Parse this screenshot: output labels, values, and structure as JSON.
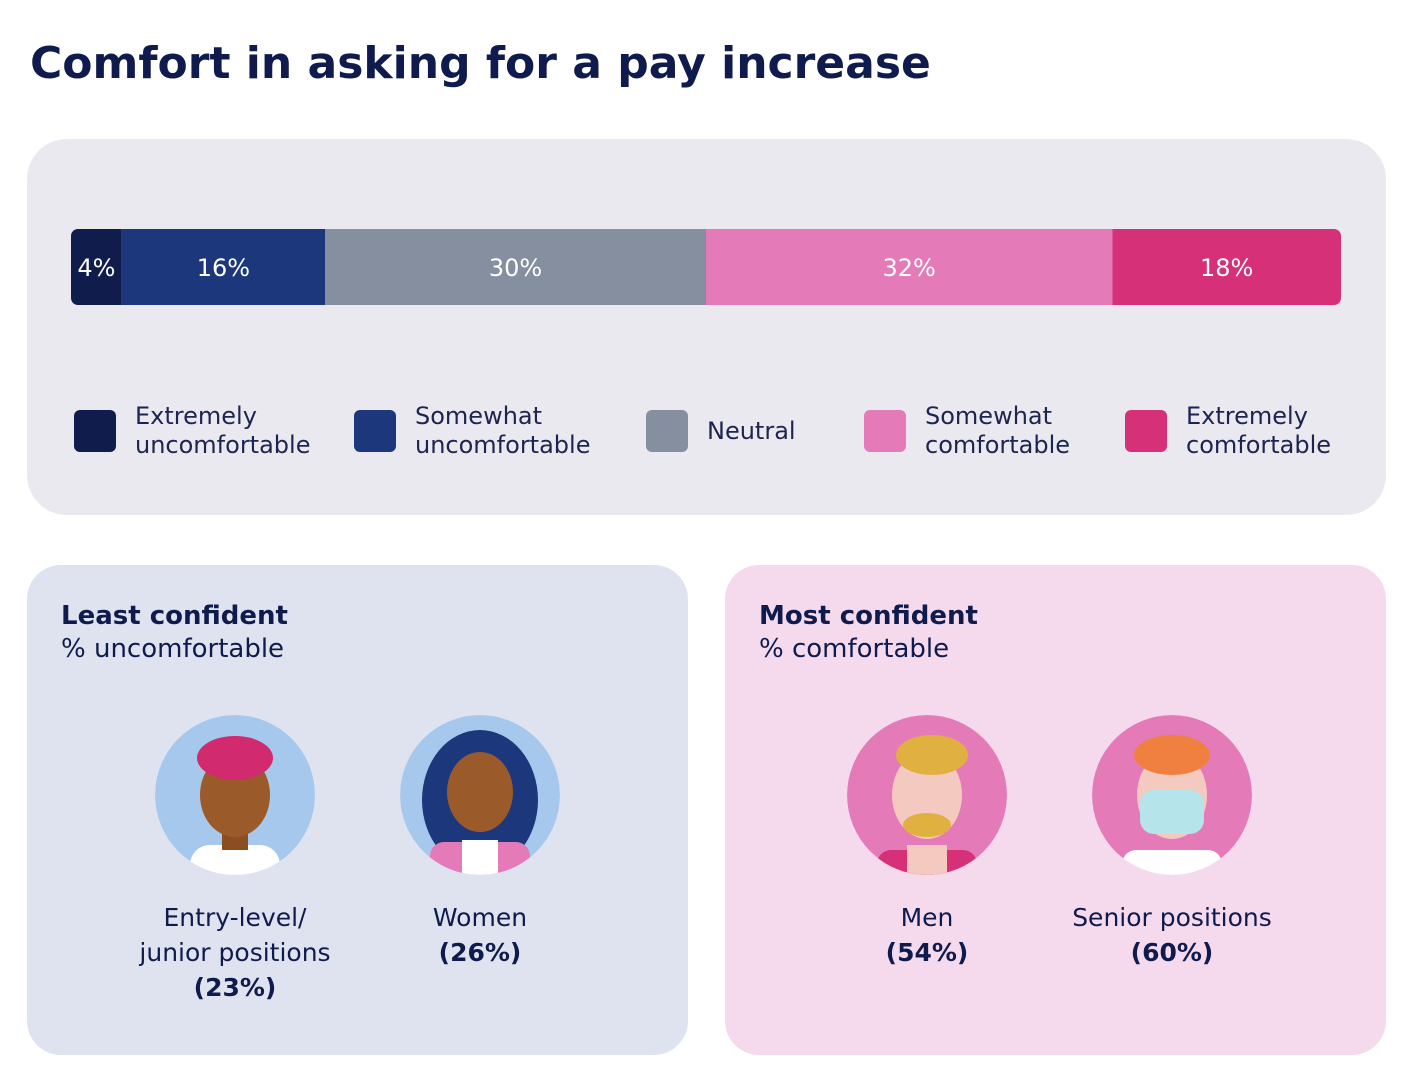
{
  "chart_data": {
    "type": "stacked-bar",
    "title": "Comfort in asking for a pay increase",
    "xlim": [
      0,
      100
    ],
    "series": [
      {
        "name": "Extremely\nuncomfortable",
        "color": "#101c4b",
        "values": [
          4
        ],
        "value_labels": [
          "4%"
        ]
      },
      {
        "name": "Somewhat\nuncomfortable",
        "color": "#1c377c",
        "values": [
          16
        ],
        "value_labels": [
          "16%"
        ]
      },
      {
        "name": "Neutral",
        "color": "#868fa0",
        "values": [
          30
        ],
        "value_labels": [
          "30%"
        ]
      },
      {
        "name": "Somewhat\ncomfortable",
        "color": "#e57ab9",
        "values": [
          32
        ],
        "value_labels": [
          "32%"
        ]
      },
      {
        "name": "Extremely\ncomfortable",
        "color": "#d63079",
        "values": [
          18
        ],
        "value_labels": [
          "18%"
        ]
      }
    ]
  },
  "panels": [
    {
      "title": "Least confident",
      "subtitle": "% uncomfortable",
      "groups": [
        {
          "label": "Entry-level/\njunior positions",
          "value": "(23%)"
        },
        {
          "label": "Women",
          "value": "(26%)"
        }
      ]
    },
    {
      "title": "Most confident",
      "subtitle": "% comfortable",
      "groups": [
        {
          "label": "Men",
          "value": "(54%)"
        },
        {
          "label": "Senior positions",
          "value": "(60%)"
        }
      ]
    }
  ]
}
